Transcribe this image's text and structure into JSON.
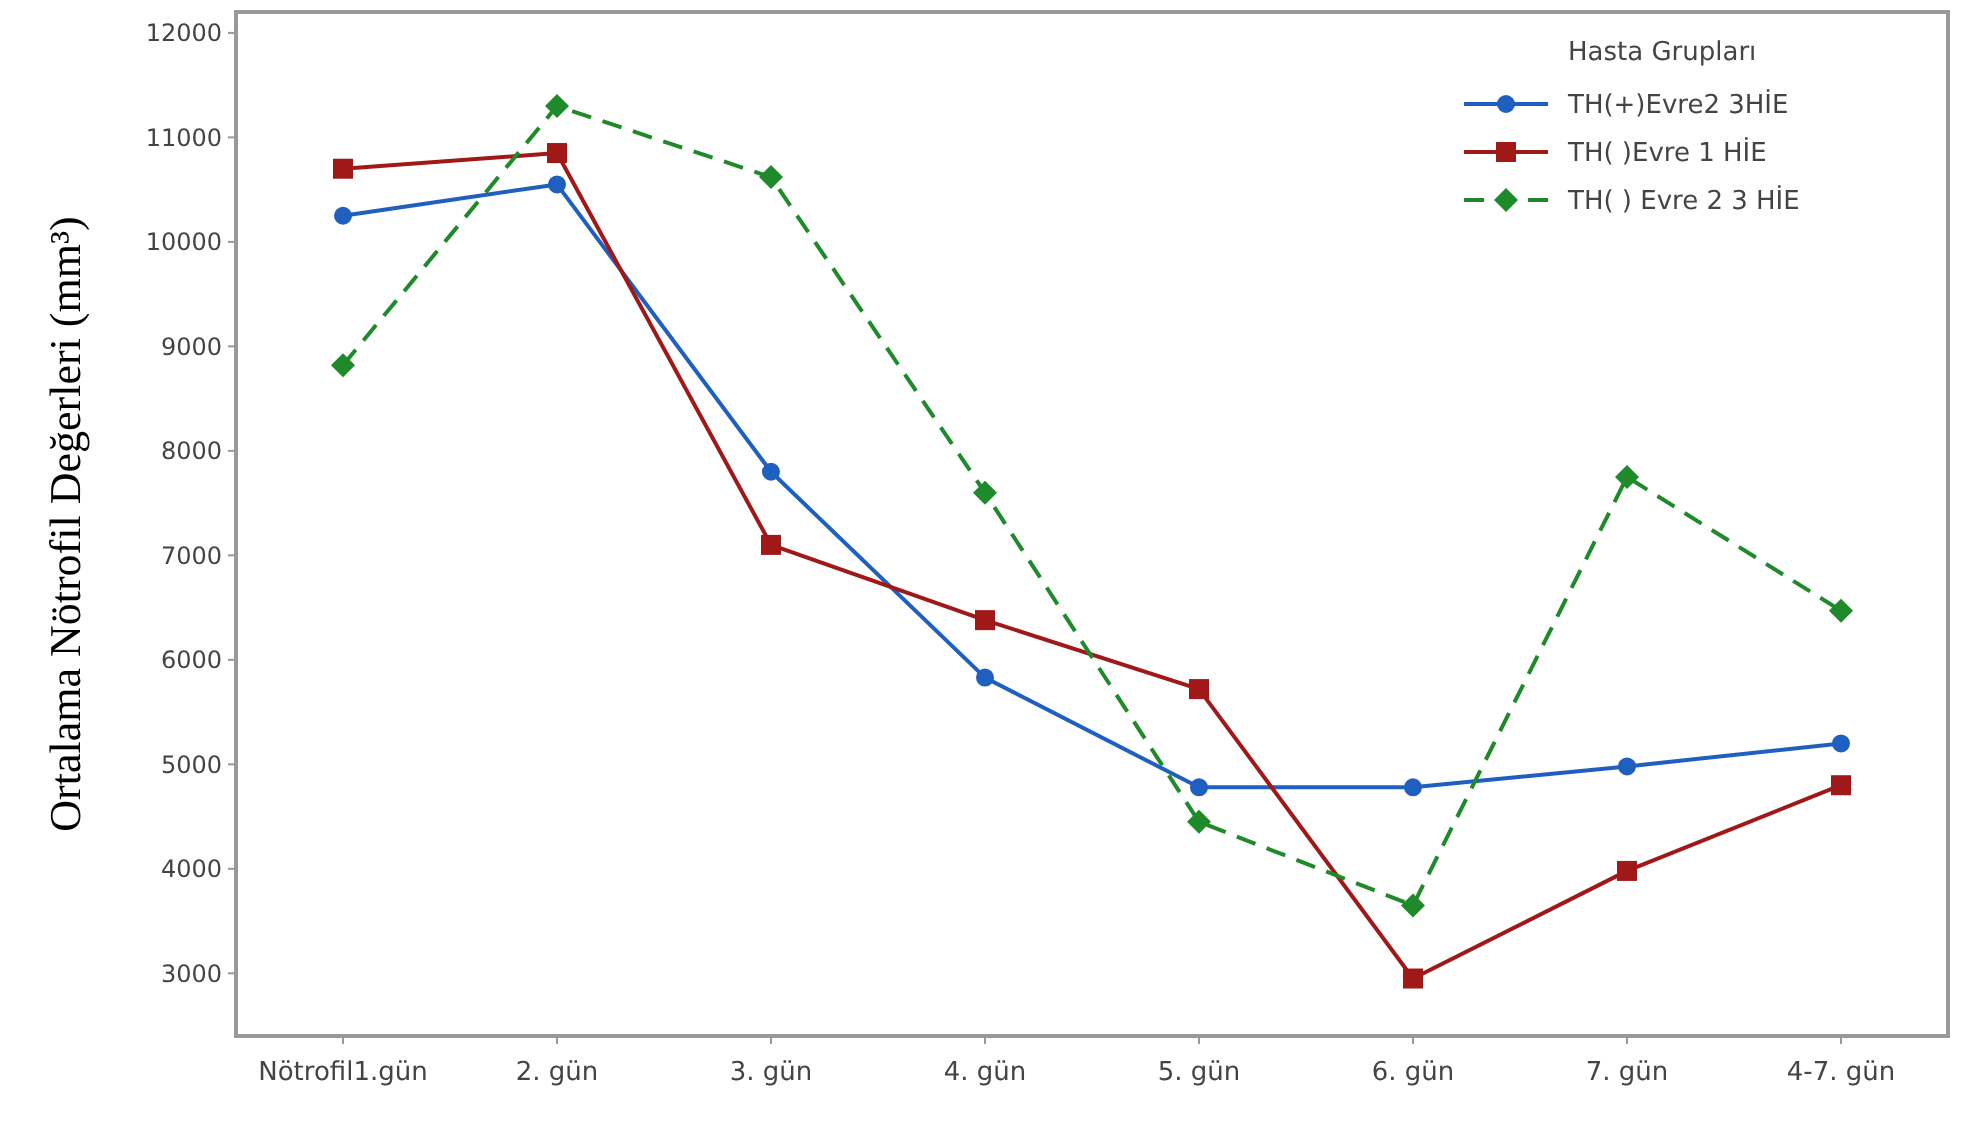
{
  "chart_data": {
    "type": "line",
    "ylabel": "Ortalama Nötrofil Değerleri (mm³)",
    "legend_title": "Hasta Grupları",
    "categories": [
      "Nötrofil1.gün",
      "2. gün",
      "3. gün",
      "4. gün",
      "5. gün",
      "6. gün",
      "7. gün",
      "4-7. gün"
    ],
    "ylim": [
      2400,
      12200
    ],
    "yticks": [
      3000,
      4000,
      5000,
      6000,
      7000,
      8000,
      9000,
      10000,
      11000,
      12000
    ],
    "grid": false,
    "legend": "top right",
    "series": [
      {
        "name": "TH(+)Evre2 3HİE",
        "color": "#1f5fbf",
        "marker": "circle",
        "line_style": "solid",
        "values": [
          10250,
          10550,
          7800,
          5830,
          4780,
          4780,
          4980,
          5200
        ]
      },
      {
        "name": "TH( )Evre 1 HİE",
        "color": "#a01818",
        "marker": "square",
        "line_style": "solid",
        "values": [
          10700,
          10850,
          7100,
          6380,
          5720,
          2950,
          3980,
          4800
        ]
      },
      {
        "name": "TH( ) Evre 2 3 HİE",
        "color": "#1e8a2a",
        "marker": "diamond",
        "line_style": "dashed",
        "values": [
          8820,
          11300,
          10620,
          7600,
          4450,
          3650,
          7750,
          6470
        ]
      }
    ]
  }
}
